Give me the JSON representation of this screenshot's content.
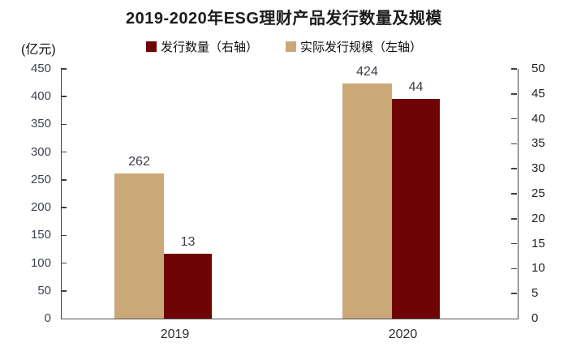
{
  "chart": {
    "title": "2019-2020年ESG理财产品发行数量及规模",
    "unit_label": "(亿元)"
  },
  "chart_data": {
    "type": "bar",
    "title": "2019-2020年ESG理财产品发行数量及规模",
    "categories": [
      "2019",
      "2020"
    ],
    "series": [
      {
        "name": "发行数量（右轴）",
        "axis": "right",
        "slot": 1,
        "color": "#6E0404",
        "values": [
          13,
          44
        ]
      },
      {
        "name": "实际发行规模（左轴）",
        "axis": "left",
        "slot": 0,
        "color": "#CBA878",
        "values": [
          262,
          424
        ]
      }
    ],
    "left_axis": {
      "label": "(亿元)",
      "min": 0,
      "max": 450,
      "step": 50
    },
    "right_axis": {
      "min": 0,
      "max": 50,
      "step": 5
    },
    "legend_position": "top",
    "grid": false,
    "data_labels": true
  }
}
